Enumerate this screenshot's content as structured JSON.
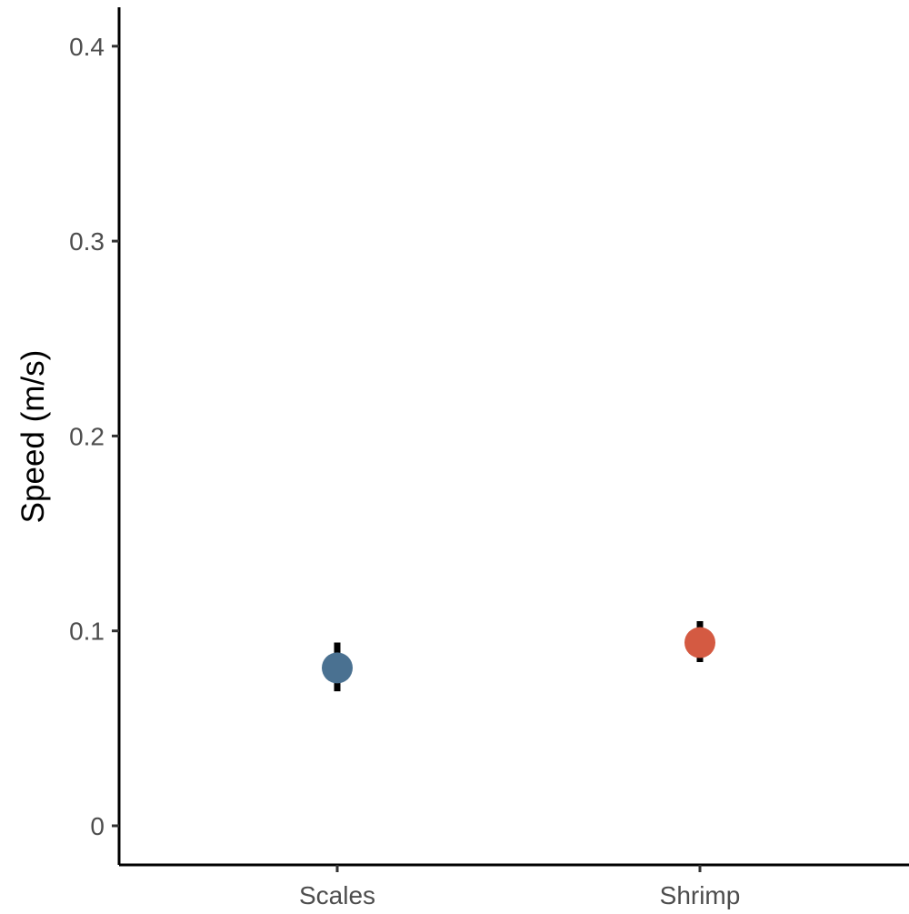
{
  "chart_data": {
    "type": "scatter",
    "title": "",
    "xlabel": "",
    "ylabel": "Speed (m/s)",
    "ylim": [
      0,
      0.42
    ],
    "yticks": [
      {
        "value": 0,
        "label": "0"
      },
      {
        "value": 0.1,
        "label": "0.1"
      },
      {
        "value": 0.2,
        "label": "0.2"
      },
      {
        "value": 0.3,
        "label": "0.3"
      },
      {
        "value": 0.4,
        "label": "0.4"
      }
    ],
    "categories": [
      "Scales",
      "Shrimp"
    ],
    "points": [
      {
        "category": "Scales",
        "y": 0.081,
        "ymin": 0.069,
        "ymax": 0.094,
        "color": "#4a7191"
      },
      {
        "category": "Shrimp",
        "y": 0.094,
        "ymin": 0.084,
        "ymax": 0.105,
        "color": "#d45a42"
      }
    ],
    "grid": false,
    "legend": "none"
  }
}
